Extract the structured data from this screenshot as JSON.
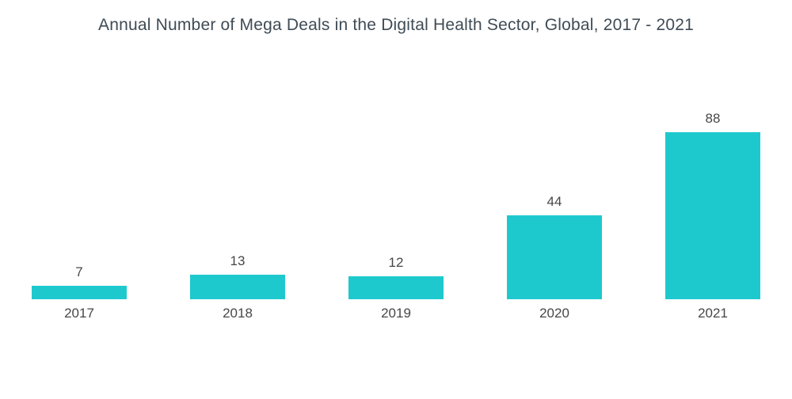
{
  "chart_data": {
    "type": "bar",
    "title": "Annual Number of Mega Deals in the Digital Health Sector, Global, 2017 - 2021",
    "categories": [
      "2017",
      "2018",
      "2019",
      "2020",
      "2021"
    ],
    "values": [
      7,
      13,
      12,
      44,
      88
    ],
    "xlabel": "",
    "ylabel": "",
    "ylim": [
      0,
      88
    ],
    "bar_color": "#1ec9ce",
    "grid": false,
    "legend": false
  }
}
